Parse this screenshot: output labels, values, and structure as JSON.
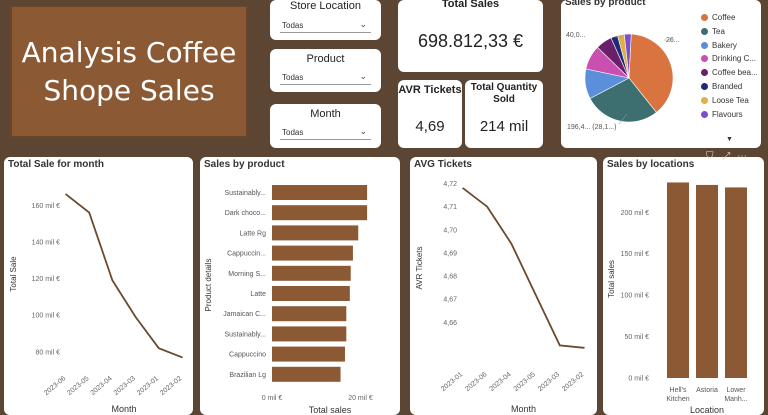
{
  "title": {
    "line1": "Analysis Coffee",
    "line2": "Shope Sales"
  },
  "slicers": {
    "store": {
      "label": "Store Location",
      "value": "Todas"
    },
    "product": {
      "label": "Product",
      "value": "Todas"
    },
    "month": {
      "label": "Month",
      "value": "Todas"
    }
  },
  "kpis": {
    "total_sales": {
      "label": "Total Sales",
      "value": "698.812,33 €"
    },
    "avr_tickets": {
      "label": "AVR Tickets",
      "value": "4,69"
    },
    "total_quantity": {
      "label_line1": "Total Quantity",
      "label_line2": "Sold",
      "value": "214 mil"
    }
  },
  "pie": {
    "title": "Sales by product",
    "label_top_left": "40,0...",
    "label_top_right": "26...",
    "label_left": "196,4... (28,1...)",
    "legend": [
      {
        "name": "Coffee",
        "color": "#d9733f"
      },
      {
        "name": "Tea",
        "color": "#3d6e70"
      },
      {
        "name": "Bakery",
        "color": "#5b8fdb"
      },
      {
        "name": "Drinking C...",
        "color": "#c94fb0"
      },
      {
        "name": "Coffee bea...",
        "color": "#6b1f6b"
      },
      {
        "name": "Branded",
        "color": "#1f2a7a"
      },
      {
        "name": "Loose Tea",
        "color": "#e0b048"
      },
      {
        "name": "Flavours",
        "color": "#7a4fc9"
      }
    ],
    "more_icon": "chevron-down-icon"
  },
  "chart_data": [
    {
      "type": "line",
      "title": "Total Sale for month",
      "xlabel": "Month",
      "ylabel": "Total Sale",
      "categories": [
        "2023-06",
        "2023-05",
        "2023-04",
        "2023-03",
        "2023-01",
        "2023-02"
      ],
      "values": [
        166,
        156,
        119,
        99,
        82,
        77
      ],
      "ylim": [
        75,
        170
      ],
      "ticks": [
        80,
        100,
        120,
        140,
        160
      ],
      "tick_labels": [
        "80 mil €",
        "100 mil €",
        "120 mil €",
        "140 mil €",
        "160 mil €"
      ],
      "color": "#6b4a2f"
    },
    {
      "type": "bar",
      "orientation": "horizontal",
      "title": "Sales by product",
      "xlabel": "Total sales",
      "ylabel": "Product details",
      "categories": [
        "Sustainably...",
        "Dark choco...",
        "Latte Rg",
        "Cappuccin...",
        "Morning S...",
        "Latte",
        "Jamaican C...",
        "Sustainably...",
        "Cappuccino",
        "Brazilian Lg"
      ],
      "values": [
        21.5,
        21.5,
        19.5,
        18.3,
        17.8,
        17.6,
        16.8,
        16.8,
        16.5,
        15.5
      ],
      "xlim": [
        0,
        26
      ],
      "ticks": [
        0,
        20
      ],
      "tick_labels": [
        "0 mil €",
        "20 mil €"
      ],
      "color": "#8b5a35"
    },
    {
      "type": "line",
      "title": "AVG Tickets",
      "xlabel": "Month",
      "ylabel": "AVR Tickets",
      "categories": [
        "2023-01",
        "2023-06",
        "2023-04",
        "2023-05",
        "2023-03",
        "2023-02"
      ],
      "values": [
        4.718,
        4.71,
        4.694,
        4.672,
        4.65,
        4.649
      ],
      "ylim": [
        4.645,
        4.722
      ],
      "ticks": [
        4.66,
        4.67,
        4.68,
        4.69,
        4.7,
        4.71,
        4.72
      ],
      "tick_labels": [
        "4,66",
        "4,67",
        "4,68",
        "4,69",
        "4,70",
        "4,71",
        "4,72"
      ],
      "color": "#6b4a2f"
    },
    {
      "type": "bar",
      "orientation": "vertical",
      "title": "Sales by locations",
      "xlabel": "Location",
      "ylabel": "Total sales",
      "categories": [
        "Hell's Kitchen",
        "Astoria",
        "Lower Manh..."
      ],
      "category_lines": [
        [
          "Hell's",
          "Kitchen"
        ],
        [
          "Astoria"
        ],
        [
          "Lower",
          "Manh..."
        ]
      ],
      "values": [
        236,
        233,
        230
      ],
      "ylim": [
        0,
        245
      ],
      "ticks": [
        0,
        50,
        100,
        150,
        200
      ],
      "tick_labels": [
        "0 mil €",
        "50 mil €",
        "100 mil €",
        "150 mil €",
        "200 mil €"
      ],
      "color": "#8b5a35"
    }
  ]
}
